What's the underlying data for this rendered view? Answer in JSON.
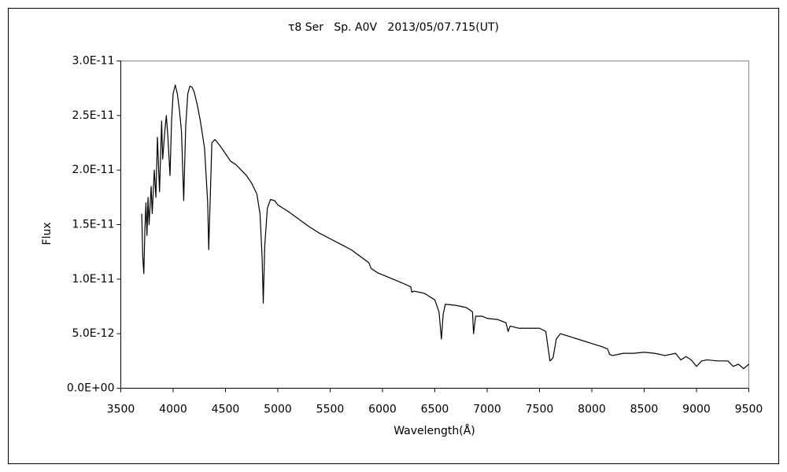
{
  "chart_data": {
    "type": "line",
    "title": "τ8 Ser   Sp. A0V   2013/05/07.715(UT)",
    "x_label": "Wavelength(Å)",
    "y_label": "Flux",
    "color": "#000000",
    "x": [
      3700,
      3710,
      3720,
      3730,
      3740,
      3750,
      3760,
      3770,
      3790,
      3800,
      3820,
      3835,
      3850,
      3870,
      3890,
      3900,
      3920,
      3935,
      3950,
      3970,
      3985,
      4000,
      4020,
      4040,
      4060,
      4080,
      4101,
      4120,
      4140,
      4160,
      4180,
      4200,
      4230,
      4260,
      4300,
      4330,
      4340,
      4350,
      4370,
      4400,
      4450,
      4500,
      4550,
      4600,
      4650,
      4700,
      4750,
      4800,
      4830,
      4850,
      4861,
      4875,
      4900,
      4930,
      4970,
      5000,
      5100,
      5200,
      5300,
      5400,
      5500,
      5600,
      5700,
      5800,
      5870,
      5890,
      5950,
      6000,
      6100,
      6200,
      6270,
      6280,
      6300,
      6400,
      6500,
      6540,
      6563,
      6580,
      6600,
      6700,
      6800,
      6860,
      6870,
      6890,
      6950,
      7000,
      7100,
      7180,
      7200,
      7220,
      7300,
      7400,
      7500,
      7560,
      7600,
      7630,
      7660,
      7700,
      7800,
      7900,
      8000,
      8100,
      8150,
      8170,
      8200,
      8300,
      8400,
      8500,
      8600,
      8700,
      8800,
      8850,
      8900,
      8950,
      9000,
      9050,
      9100,
      9200,
      9300,
      9350,
      9400,
      9450,
      9500
    ],
    "values": [
      1.6e-11,
      1.2e-11,
      1.05e-11,
      1.45e-11,
      1.7e-11,
      1.4e-11,
      1.75e-11,
      1.5e-11,
      1.85e-11,
      1.6e-11,
      2e-11,
      1.75e-11,
      2.3e-11,
      1.8e-11,
      2.45e-11,
      2.1e-11,
      2.35e-11,
      2.5e-11,
      2.3e-11,
      1.95e-11,
      2.45e-11,
      2.7e-11,
      2.78e-11,
      2.7e-11,
      2.55e-11,
      2.35e-11,
      1.72e-11,
      2.4e-11,
      2.7e-11,
      2.77e-11,
      2.76e-11,
      2.72e-11,
      2.6e-11,
      2.45e-11,
      2.2e-11,
      1.7e-11,
      1.27e-11,
      1.6e-11,
      2.25e-11,
      2.28e-11,
      2.22e-11,
      2.15e-11,
      2.08e-11,
      2.05e-11,
      2e-11,
      1.95e-11,
      1.88e-11,
      1.78e-11,
      1.6e-11,
      1.2e-11,
      7.8e-12,
      1.3e-11,
      1.65e-11,
      1.73e-11,
      1.72e-11,
      1.68e-11,
      1.62e-11,
      1.55e-11,
      1.48e-11,
      1.42e-11,
      1.37e-11,
      1.32e-11,
      1.27e-11,
      1.2e-11,
      1.15e-11,
      1.1e-11,
      1.06e-11,
      1.04e-11,
      1e-11,
      9.6e-12,
      9.3e-12,
      8.8e-12,
      8.9e-12,
      8.7e-12,
      8.1e-12,
      7e-12,
      4.5e-12,
      6.8e-12,
      7.7e-12,
      7.6e-12,
      7.4e-12,
      7e-12,
      5e-12,
      6.6e-12,
      6.6e-12,
      6.4e-12,
      6.3e-12,
      6e-12,
      5.2e-12,
      5.7e-12,
      5.5e-12,
      5.5e-12,
      5.5e-12,
      5.2e-12,
      2.5e-12,
      2.8e-12,
      4.5e-12,
      5e-12,
      4.7e-12,
      4.4e-12,
      4.1e-12,
      3.8e-12,
      3.6e-12,
      3.1e-12,
      3e-12,
      3.2e-12,
      3.2e-12,
      3.3e-12,
      3.2e-12,
      3e-12,
      3.2e-12,
      2.6e-12,
      2.9e-12,
      2.6e-12,
      2e-12,
      2.5e-12,
      2.6e-12,
      2.5e-12,
      2.5e-12,
      2e-12,
      2.2e-12,
      1.8e-12,
      2.2e-12
    ],
    "xlim": [
      3500,
      9500
    ],
    "xticks": [
      3500,
      4000,
      4500,
      5000,
      5500,
      6000,
      6500,
      7000,
      7500,
      8000,
      8500,
      9000,
      9500
    ],
    "ylim": [
      0,
      3e-11
    ],
    "yticks": [
      {
        "value": 0,
        "label": "0.0E+00"
      },
      {
        "value": 5e-12,
        "label": "5.0E-12"
      },
      {
        "value": 1e-11,
        "label": "1.0E-11"
      },
      {
        "value": 1.5e-11,
        "label": "1.5E-11"
      },
      {
        "value": 2e-11,
        "label": "2.0E-11"
      },
      {
        "value": 2.5e-11,
        "label": "2.5E-11"
      },
      {
        "value": 3e-11,
        "label": "3.0E-11"
      }
    ],
    "grid": false
  }
}
